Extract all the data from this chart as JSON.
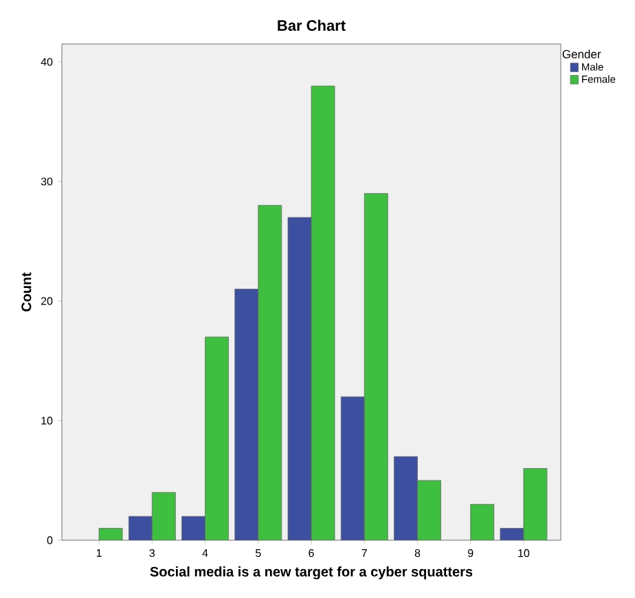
{
  "chart_data": {
    "type": "bar",
    "title": "Bar Chart",
    "xlabel": "Social media is a new target for a cyber squatters",
    "ylabel": "Count",
    "legend_title": "Gender",
    "categories": [
      "1",
      "3",
      "4",
      "5",
      "6",
      "7",
      "8",
      "9",
      "10"
    ],
    "series": [
      {
        "name": "Male",
        "color": "#3d4fa0",
        "values": [
          null,
          2,
          2,
          21,
          27,
          12,
          7,
          null,
          1
        ]
      },
      {
        "name": "Female",
        "color": "#3fbf3f",
        "values": [
          1,
          4,
          17,
          28,
          38,
          29,
          5,
          3,
          6
        ]
      }
    ],
    "ylim": [
      0,
      41.5
    ],
    "yticks": [
      0,
      10,
      20,
      30,
      40
    ],
    "grid": false,
    "legend": "top right"
  }
}
